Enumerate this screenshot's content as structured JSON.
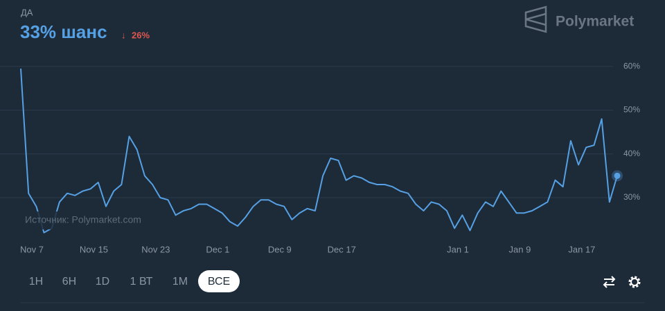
{
  "header": {
    "outcome": "ДА",
    "chance": "33% шанс",
    "change": "26%",
    "brand": "Polymarket"
  },
  "chart_data": {
    "type": "line",
    "source": "Источник: Polymarket.com",
    "categories": [
      "Nov 7",
      null,
      null,
      null,
      null,
      null,
      null,
      null,
      "Nov 15",
      null,
      null,
      null,
      null,
      null,
      null,
      null,
      "Nov 23",
      null,
      null,
      null,
      null,
      null,
      null,
      null,
      "Dec 1",
      null,
      null,
      null,
      null,
      null,
      null,
      null,
      "Dec 9",
      null,
      null,
      null,
      null,
      null,
      null,
      null,
      "Dec 17",
      null,
      null,
      null,
      null,
      null,
      null,
      null,
      null,
      null,
      null,
      null,
      null,
      null,
      null,
      "Jan 1",
      null,
      null,
      null,
      null,
      null,
      null,
      null,
      "Jan 9",
      null,
      null,
      null,
      null,
      null,
      null,
      null,
      "Jan 17",
      null,
      null,
      null,
      null,
      null,
      null
    ],
    "values": [
      59.5,
      31,
      28,
      22,
      23,
      29,
      31,
      30.5,
      31.5,
      32,
      33.5,
      28,
      31.5,
      33,
      44,
      41,
      35,
      33,
      30,
      29.5,
      26,
      27,
      27.5,
      28.5,
      28.5,
      27.5,
      26.5,
      24.5,
      23.5,
      25.5,
      28,
      29.5,
      29.5,
      28.5,
      28,
      25,
      26.5,
      27.5,
      27,
      35,
      39,
      38.5,
      34,
      35,
      34.5,
      33.5,
      33,
      33,
      32.5,
      31.5,
      31,
      28.5,
      27,
      29,
      28.5,
      27,
      23,
      26,
      22.5,
      26.5,
      29,
      28,
      31.5,
      29,
      26.5,
      26.5,
      27,
      28,
      29,
      34,
      32.5,
      43,
      37.5,
      41.5,
      42,
      48,
      29,
      35
    ],
    "color": "#56a0e4",
    "ylim": [
      20,
      61
    ],
    "yticks": [
      {
        "value": 30,
        "label": "30%"
      },
      {
        "value": 40,
        "label": "40%"
      },
      {
        "value": 50,
        "label": "50%"
      },
      {
        "value": 60,
        "label": "60%"
      }
    ],
    "grid": true
  },
  "controls": [
    "1H",
    "6H",
    "1D",
    "1 ВТ",
    "1M",
    "ВСЕ"
  ],
  "active_control": 5
}
